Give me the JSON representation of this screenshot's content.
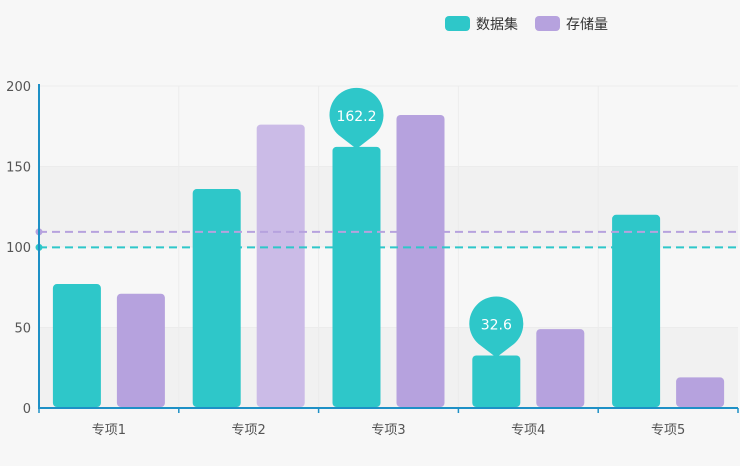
{
  "chart_data": {
    "type": "bar",
    "categories": [
      "专项1",
      "专项2",
      "专项3",
      "专项4",
      "专项5"
    ],
    "series": [
      {
        "name": "数据集",
        "color": "#2ec7c9",
        "values": [
          77,
          136,
          162.2,
          32.6,
          120
        ]
      },
      {
        "name": "存储量",
        "color": "#b6a2de",
        "values": [
          71,
          176,
          182,
          49,
          19
        ]
      }
    ],
    "highlight_colors": {
      "存储量": {
        "专项2": "#cbbbe7"
      }
    },
    "mark_points": [
      {
        "series": "数据集",
        "category": "专项3",
        "value": 162.2,
        "label": "162.2"
      },
      {
        "series": "数据集",
        "category": "专项4",
        "value": 32.6,
        "label": "32.6"
      }
    ],
    "mark_lines": [
      {
        "series": "数据集",
        "value": 99.76,
        "color": "#2ec7c9",
        "style": "dashed"
      },
      {
        "series": "存储量",
        "value": 109.4,
        "color": "#b6a2de",
        "style": "dashed"
      }
    ],
    "yticks": [
      0,
      50,
      100,
      150,
      200
    ],
    "ylim": [
      0,
      200
    ],
    "legend": {
      "position": "top-right"
    },
    "grid": true
  }
}
